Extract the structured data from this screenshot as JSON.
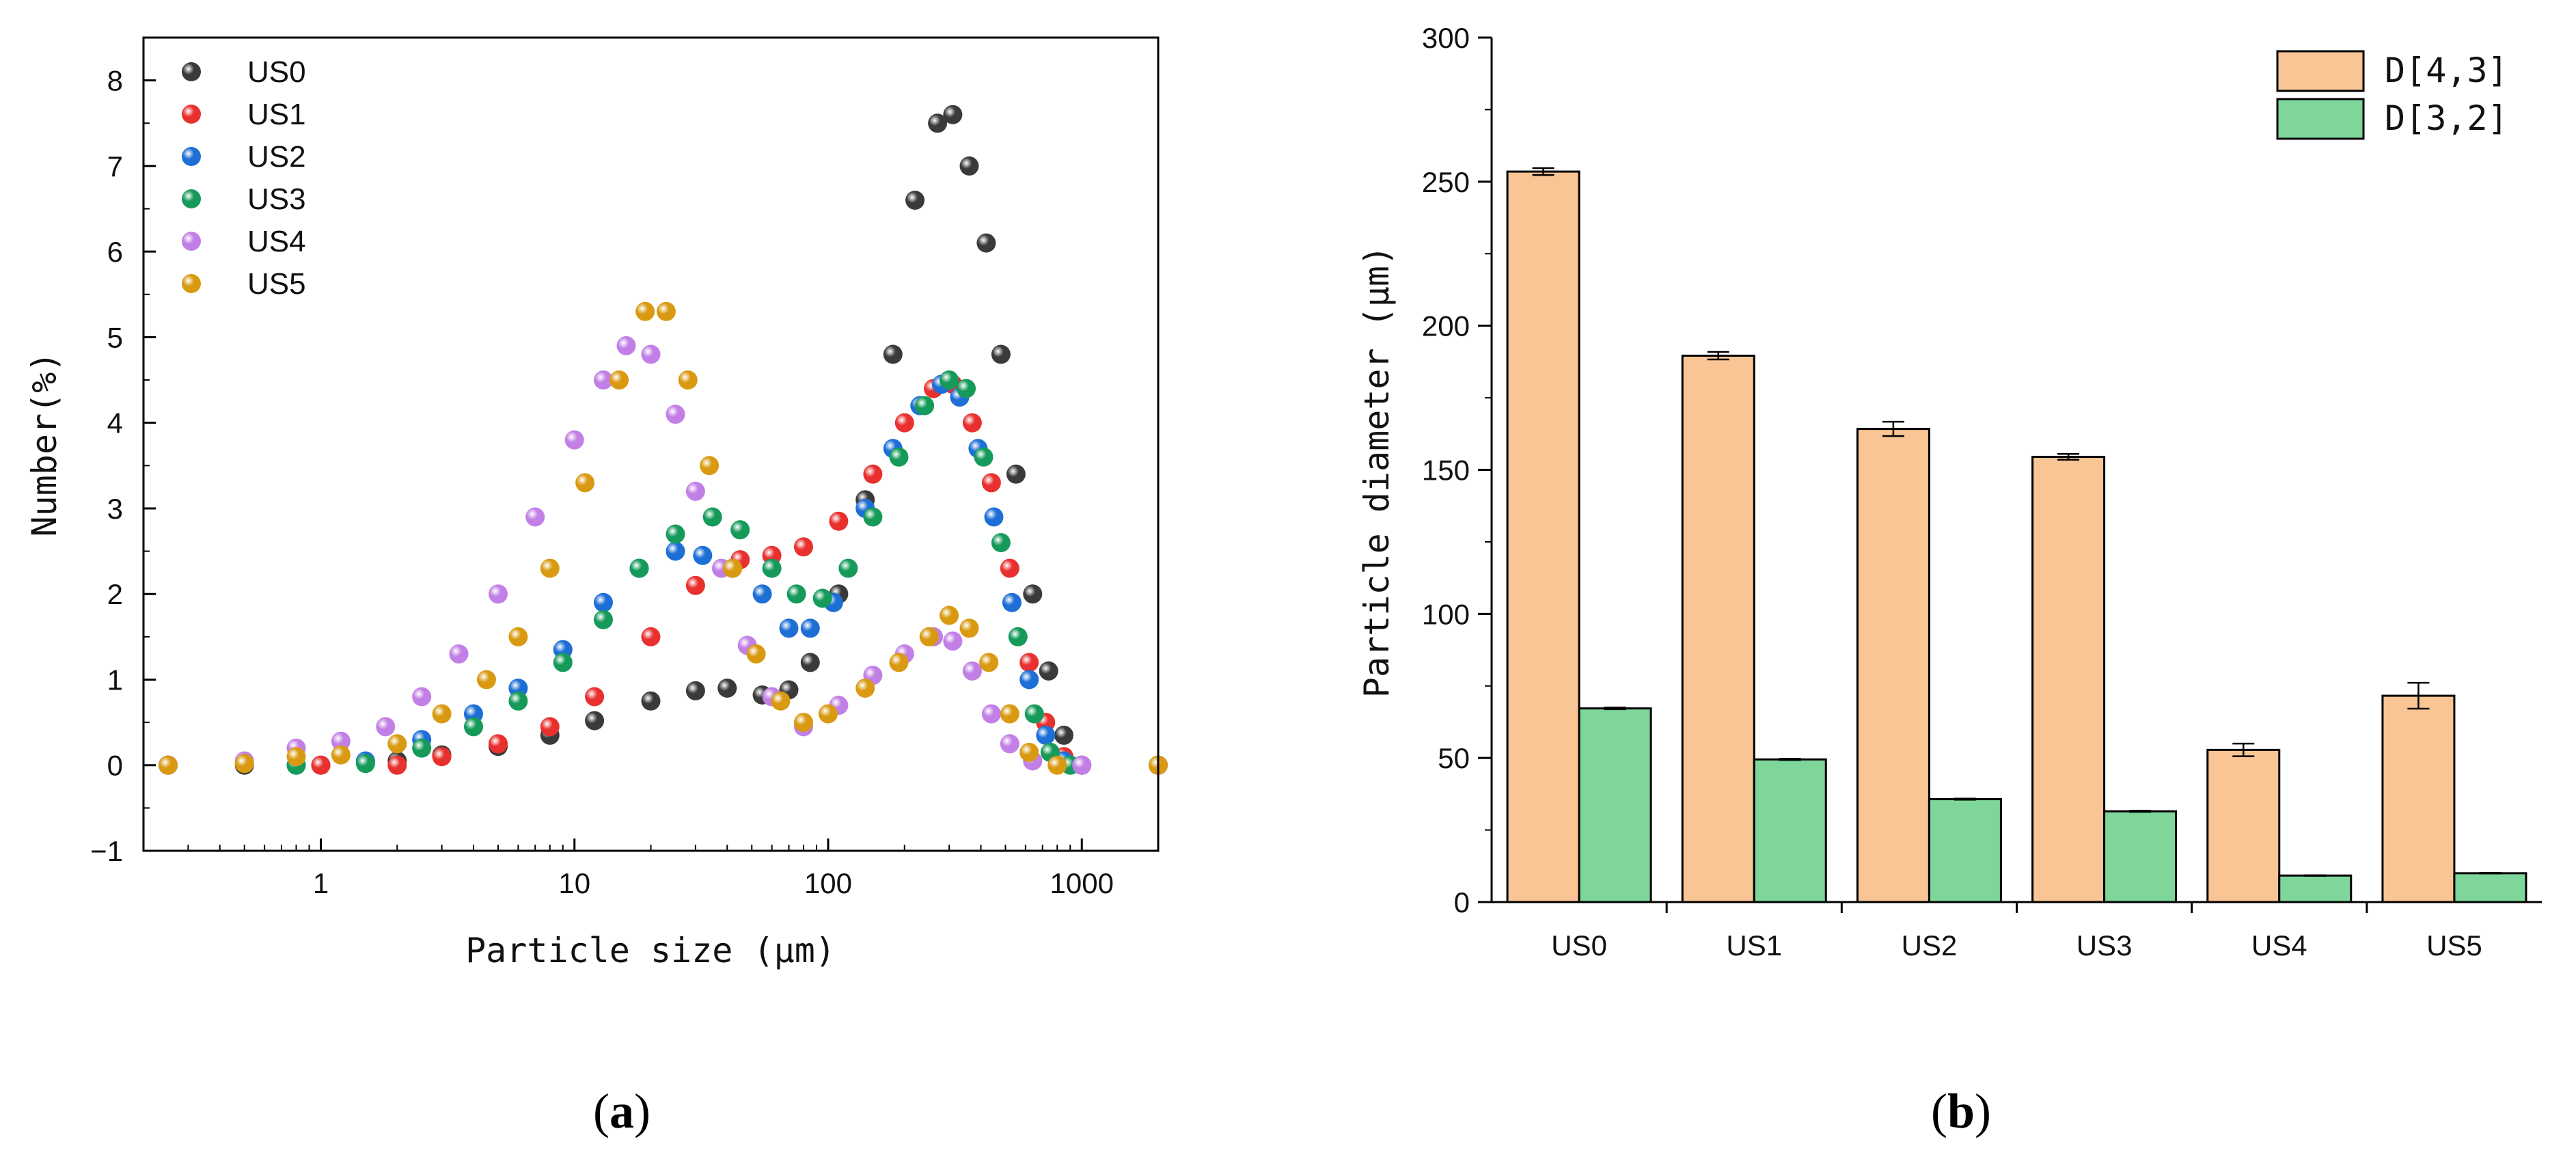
{
  "colors": {
    "US0": "#3a3a3a",
    "US1": "#e8312f",
    "US2": "#1d6fd6",
    "US3": "#159a5a",
    "US4": "#c27fe6",
    "US5": "#d99a12",
    "bar_d43": "#f9c595",
    "bar_d32": "#7fd69a",
    "axis": "#000000"
  },
  "chart_data": [
    {
      "type": "scatter",
      "panel_label": "a",
      "xlabel": "Particle size (μm)",
      "ylabel": "Number(%)",
      "xscale": "log",
      "xlim": [
        0.2,
        2000
      ],
      "ylim": [
        -1,
        8.5
      ],
      "xticks": [
        1,
        10,
        100,
        1000
      ],
      "xtick_labels": [
        "1",
        "10",
        "100",
        "1000"
      ],
      "yticks": [
        -1,
        0,
        1,
        2,
        3,
        4,
        5,
        6,
        7,
        8
      ],
      "ytick_labels": [
        "−1",
        "0",
        "1",
        "2",
        "3",
        "4",
        "5",
        "6",
        "7",
        "8"
      ],
      "legend_position": "top-left",
      "series": [
        {
          "name": "US0",
          "points": [
            [
              0.25,
              0
            ],
            [
              0.5,
              0
            ],
            [
              1,
              0
            ],
            [
              2,
              0.05
            ],
            [
              3,
              0.12
            ],
            [
              5,
              0.22
            ],
            [
              8,
              0.35
            ],
            [
              12,
              0.52
            ],
            [
              20,
              0.75
            ],
            [
              30,
              0.87
            ],
            [
              40,
              0.9
            ],
            [
              55,
              0.82
            ],
            [
              70,
              0.88
            ],
            [
              85,
              1.2
            ],
            [
              110,
              2.0
            ],
            [
              140,
              3.1
            ],
            [
              180,
              4.8
            ],
            [
              220,
              6.6
            ],
            [
              270,
              7.5
            ],
            [
              310,
              7.6
            ],
            [
              360,
              7.0
            ],
            [
              420,
              6.1
            ],
            [
              480,
              4.8
            ],
            [
              550,
              3.4
            ],
            [
              640,
              2.0
            ],
            [
              740,
              1.1
            ],
            [
              850,
              0.35
            ],
            [
              1000,
              0
            ],
            [
              2000,
              0
            ]
          ]
        },
        {
          "name": "US1",
          "points": [
            [
              0.25,
              0
            ],
            [
              1,
              0
            ],
            [
              2,
              0
            ],
            [
              3,
              0.1
            ],
            [
              5,
              0.25
            ],
            [
              8,
              0.45
            ],
            [
              12,
              0.8
            ],
            [
              20,
              1.5
            ],
            [
              30,
              2.1
            ],
            [
              45,
              2.4
            ],
            [
              60,
              2.45
            ],
            [
              80,
              2.55
            ],
            [
              110,
              2.85
            ],
            [
              150,
              3.4
            ],
            [
              200,
              4.0
            ],
            [
              260,
              4.4
            ],
            [
              310,
              4.45
            ],
            [
              370,
              4.0
            ],
            [
              440,
              3.3
            ],
            [
              520,
              2.3
            ],
            [
              620,
              1.2
            ],
            [
              720,
              0.5
            ],
            [
              850,
              0.1
            ],
            [
              1000,
              0
            ],
            [
              2000,
              0
            ]
          ]
        },
        {
          "name": "US2",
          "points": [
            [
              0.25,
              0
            ],
            [
              0.8,
              0
            ],
            [
              1.5,
              0.05
            ],
            [
              2.5,
              0.3
            ],
            [
              4,
              0.6
            ],
            [
              6,
              0.9
            ],
            [
              9,
              1.35
            ],
            [
              13,
              1.9
            ],
            [
              18,
              2.3
            ],
            [
              25,
              2.5
            ],
            [
              32,
              2.45
            ],
            [
              42,
              2.3
            ],
            [
              55,
              2.0
            ],
            [
              70,
              1.6
            ],
            [
              85,
              1.6
            ],
            [
              105,
              1.9
            ],
            [
              140,
              3.0
            ],
            [
              180,
              3.7
            ],
            [
              230,
              4.2
            ],
            [
              280,
              4.45
            ],
            [
              330,
              4.3
            ],
            [
              390,
              3.7
            ],
            [
              450,
              2.9
            ],
            [
              530,
              1.9
            ],
            [
              620,
              1.0
            ],
            [
              720,
              0.35
            ],
            [
              850,
              0.05
            ],
            [
              1000,
              0
            ],
            [
              2000,
              0
            ]
          ]
        },
        {
          "name": "US3",
          "points": [
            [
              0.25,
              0
            ],
            [
              0.8,
              0
            ],
            [
              1.5,
              0.02
            ],
            [
              2.5,
              0.2
            ],
            [
              4,
              0.45
            ],
            [
              6,
              0.75
            ],
            [
              9,
              1.2
            ],
            [
              13,
              1.7
            ],
            [
              18,
              2.3
            ],
            [
              25,
              2.7
            ],
            [
              35,
              2.9
            ],
            [
              45,
              2.75
            ],
            [
              60,
              2.3
            ],
            [
              75,
              2.0
            ],
            [
              95,
              1.95
            ],
            [
              120,
              2.3
            ],
            [
              150,
              2.9
            ],
            [
              190,
              3.6
            ],
            [
              240,
              4.2
            ],
            [
              300,
              4.5
            ],
            [
              350,
              4.4
            ],
            [
              410,
              3.6
            ],
            [
              480,
              2.6
            ],
            [
              560,
              1.5
            ],
            [
              650,
              0.6
            ],
            [
              750,
              0.15
            ],
            [
              900,
              0
            ],
            [
              2000,
              0
            ]
          ]
        },
        {
          "name": "US4",
          "points": [
            [
              0.25,
              0
            ],
            [
              0.5,
              0.05
            ],
            [
              0.8,
              0.2
            ],
            [
              1.2,
              0.28
            ],
            [
              1.8,
              0.45
            ],
            [
              2.5,
              0.8
            ],
            [
              3.5,
              1.3
            ],
            [
              5,
              2.0
            ],
            [
              7,
              2.9
            ],
            [
              10,
              3.8
            ],
            [
              13,
              4.5
            ],
            [
              16,
              4.9
            ],
            [
              20,
              4.8
            ],
            [
              25,
              4.1
            ],
            [
              30,
              3.2
            ],
            [
              38,
              2.3
            ],
            [
              48,
              1.4
            ],
            [
              60,
              0.8
            ],
            [
              80,
              0.45
            ],
            [
              110,
              0.7
            ],
            [
              150,
              1.05
            ],
            [
              200,
              1.3
            ],
            [
              260,
              1.5
            ],
            [
              310,
              1.45
            ],
            [
              370,
              1.1
            ],
            [
              440,
              0.6
            ],
            [
              520,
              0.25
            ],
            [
              640,
              0.05
            ],
            [
              1000,
              0
            ],
            [
              2000,
              0
            ]
          ]
        },
        {
          "name": "US5",
          "points": [
            [
              0.25,
              0
            ],
            [
              0.5,
              0.02
            ],
            [
              0.8,
              0.1
            ],
            [
              1.2,
              0.12
            ],
            [
              2,
              0.25
            ],
            [
              3,
              0.6
            ],
            [
              4.5,
              1.0
            ],
            [
              6,
              1.5
            ],
            [
              8,
              2.3
            ],
            [
              11,
              3.3
            ],
            [
              15,
              4.5
            ],
            [
              19,
              5.3
            ],
            [
              23,
              5.3
            ],
            [
              28,
              4.5
            ],
            [
              34,
              3.5
            ],
            [
              42,
              2.3
            ],
            [
              52,
              1.3
            ],
            [
              65,
              0.75
            ],
            [
              80,
              0.5
            ],
            [
              100,
              0.6
            ],
            [
              140,
              0.9
            ],
            [
              190,
              1.2
            ],
            [
              250,
              1.5
            ],
            [
              300,
              1.75
            ],
            [
              360,
              1.6
            ],
            [
              430,
              1.2
            ],
            [
              520,
              0.6
            ],
            [
              620,
              0.15
            ],
            [
              800,
              0
            ],
            [
              2000,
              0
            ]
          ]
        }
      ]
    },
    {
      "type": "bar",
      "panel_label": "b",
      "xlabel": "",
      "ylabel": "Particle diameter (μm)",
      "ylim": [
        0,
        300
      ],
      "yticks": [
        0,
        50,
        100,
        150,
        200,
        250,
        300
      ],
      "ytick_labels": [
        "0",
        "50",
        "100",
        "150",
        "200",
        "250",
        "300"
      ],
      "legend_position": "top-right",
      "categories": [
        "US0",
        "US1",
        "US2",
        "US3",
        "US4",
        "US5"
      ],
      "series": [
        {
          "name": "D[4,3]",
          "values": [
            253.5,
            189.6,
            164.2,
            154.5,
            52.8,
            71.6
          ],
          "errors": [
            1.2,
            1.3,
            2.5,
            1.0,
            2.2,
            4.5
          ]
        },
        {
          "name": "D[3,2]",
          "values": [
            67.2,
            49.5,
            35.7,
            31.5,
            9.2,
            10.0
          ],
          "errors": [
            0.3,
            0.2,
            0.2,
            0.2,
            0.1,
            0.1
          ]
        }
      ]
    }
  ]
}
